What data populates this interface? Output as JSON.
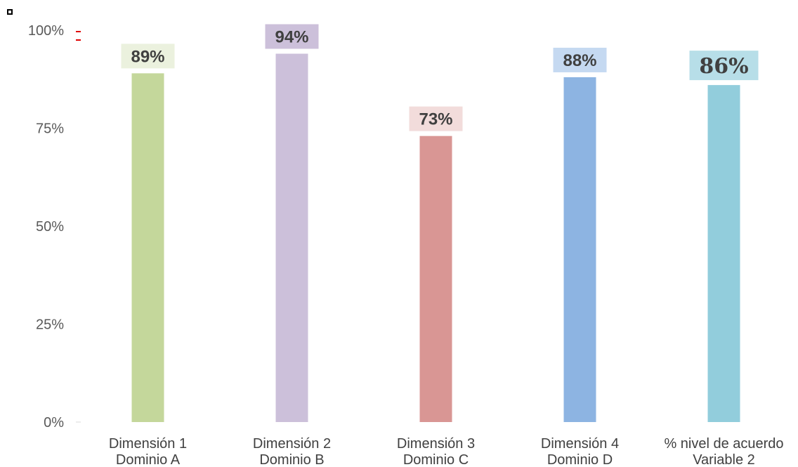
{
  "chart_data": {
    "type": "bar",
    "categories": [
      [
        "Dimensión 1",
        "Dominio A"
      ],
      [
        "Dimensión 2",
        "Dominio B"
      ],
      [
        "Dimensión 3",
        "Dominio C"
      ],
      [
        "Dimensión 4",
        "Dominio D"
      ],
      [
        "% nivel de acuerdo",
        "Variable 2"
      ]
    ],
    "values": [
      89,
      94,
      73,
      88,
      86
    ],
    "data_labels": [
      "89%",
      "94%",
      "73%",
      "88%",
      "86%"
    ],
    "y_ticks": [
      "0%",
      "25%",
      "50%",
      "75%",
      "100%"
    ],
    "ylim": [
      0,
      100
    ],
    "bar_colors": [
      "#c4d79b",
      "#ccc0da",
      "#d99694",
      "#8db4e2",
      "#92cddc"
    ],
    "label_backgrounds": [
      "#ebf1de",
      "#ccc0da",
      "#f2dcdb",
      "#c5d9f1",
      "#b7dee8"
    ],
    "grid": false,
    "legend": "none"
  }
}
